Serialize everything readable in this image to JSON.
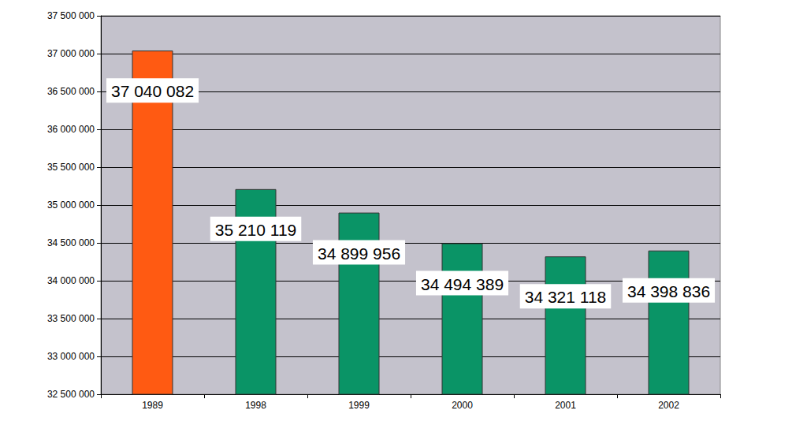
{
  "chart_data": {
    "type": "bar",
    "categories": [
      "1989",
      "1998",
      "1999",
      "2000",
      "2001",
      "2002"
    ],
    "values": [
      37040082,
      35210119,
      34899956,
      34494389,
      34321118,
      34398836
    ],
    "value_labels": [
      "37 040 082",
      "35 210 119",
      "34 899 956",
      "34 494 389",
      "34 321 118",
      "34 398 836"
    ],
    "colors": [
      "#ff5a12",
      "#0a9466",
      "#0a9466",
      "#0a9466",
      "#0a9466",
      "#0a9466"
    ],
    "ylim": [
      32500000,
      37500000
    ],
    "yticks": [
      {
        "value": 32500000,
        "label": "32 500 000"
      },
      {
        "value": 33000000,
        "label": "33 000 000"
      },
      {
        "value": 33500000,
        "label": "33 500 000"
      },
      {
        "value": 34000000,
        "label": "34 000 000"
      },
      {
        "value": 34500000,
        "label": "34 500 000"
      },
      {
        "value": 35000000,
        "label": "35 000 000"
      },
      {
        "value": 35500000,
        "label": "35 500 000"
      },
      {
        "value": 36000000,
        "label": "36 000 000"
      },
      {
        "value": 36500000,
        "label": "36 500 000"
      },
      {
        "value": 37000000,
        "label": "37 000 000"
      },
      {
        "value": 37500000,
        "label": "37 500 000"
      }
    ],
    "grid": true,
    "data_labels": true
  }
}
